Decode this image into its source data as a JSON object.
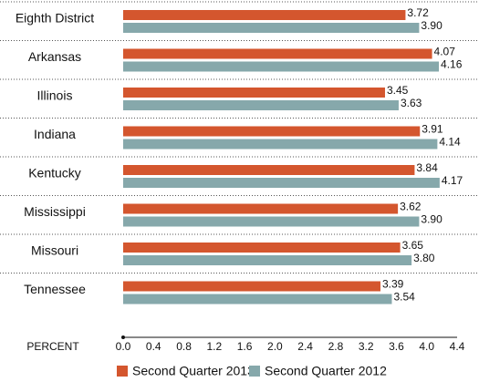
{
  "chart_data": {
    "type": "hbar",
    "categories": [
      "Eighth District",
      "Arkansas",
      "Illinois",
      "Indiana",
      "Kentucky",
      "Mississippi",
      "Missouri",
      "Tennessee"
    ],
    "series": [
      {
        "name": "Second Quarter 2013",
        "color": "#d4562e",
        "values": [
          3.72,
          4.07,
          3.45,
          3.91,
          3.84,
          3.62,
          3.65,
          3.39
        ],
        "value_labels": [
          "3.72",
          "4.07",
          "3.45",
          "3.91",
          "3.84",
          "3.62",
          "3.65",
          "3.39"
        ]
      },
      {
        "name": "Second Quarter 2012",
        "color": "#86a8ab",
        "values": [
          3.9,
          4.16,
          3.63,
          4.14,
          4.17,
          3.9,
          3.8,
          3.54
        ],
        "value_labels": [
          "3.90",
          "4.16",
          "3.63",
          "4.14",
          "4.17",
          "3.90",
          "3.80",
          "3.54"
        ]
      }
    ],
    "xlabel": "PERCENT",
    "xlim": [
      0,
      4.4
    ],
    "xticks": [
      {
        "value": 0,
        "label": "0.0"
      },
      0.4,
      0.8,
      1.2,
      1.6,
      {
        "value": 2,
        "label": "2.0"
      },
      2.4,
      2.8,
      3.2,
      3.6,
      {
        "value": 4,
        "label": "4.0"
      },
      4.4
    ],
    "legend": "bottom"
  }
}
